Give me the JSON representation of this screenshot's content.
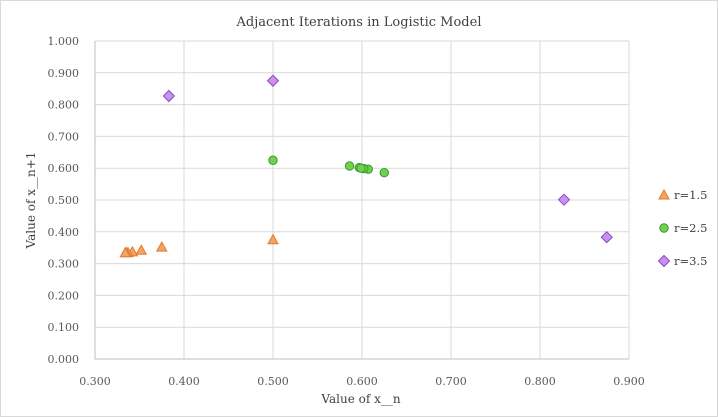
{
  "chart_data": {
    "type": "scatter",
    "title": "Adjacent Iterations  in Logistic Model",
    "xlabel": "Value of x__n",
    "ylabel": "Value of x__n+1",
    "xlim": [
      0.3,
      0.9
    ],
    "ylim": [
      0.0,
      1.0
    ],
    "x_ticks": [
      0.3,
      0.4,
      0.5,
      0.6,
      0.7,
      0.8,
      0.9
    ],
    "y_ticks": [
      0.0,
      0.1,
      0.2,
      0.3,
      0.4,
      0.5,
      0.6,
      0.7,
      0.8,
      0.9,
      1.0
    ],
    "x_tick_labels": [
      "0.300",
      "0.400",
      "0.500",
      "0.600",
      "0.700",
      "0.800",
      "0.900"
    ],
    "y_tick_labels": [
      "0.000",
      "0.100",
      "0.200",
      "0.300",
      "0.400",
      "0.500",
      "0.600",
      "0.700",
      "0.800",
      "0.900",
      "1.000"
    ],
    "grid": true,
    "legend_position": "right",
    "series": [
      {
        "name": "r=1.5",
        "marker": "triangle",
        "color": "#f4a460",
        "stroke": "#e07a2e",
        "points": [
          [
            0.5,
            0.375
          ],
          [
            0.375,
            0.352
          ],
          [
            0.352,
            0.342
          ],
          [
            0.342,
            0.337
          ],
          [
            0.337,
            0.335
          ],
          [
            0.335,
            0.334
          ],
          [
            0.334,
            0.334
          ]
        ]
      },
      {
        "name": "r=2.5",
        "marker": "circle",
        "color": "#70d050",
        "stroke": "#3a9a2a",
        "points": [
          [
            0.5,
            0.625
          ],
          [
            0.625,
            0.586
          ],
          [
            0.586,
            0.607
          ],
          [
            0.607,
            0.597
          ],
          [
            0.597,
            0.602
          ],
          [
            0.602,
            0.599
          ],
          [
            0.599,
            0.6
          ]
        ]
      },
      {
        "name": "r=3.5",
        "marker": "diamond",
        "color": "#c890f0",
        "stroke": "#8a4ac0",
        "points": [
          [
            0.5,
            0.875
          ],
          [
            0.875,
            0.383
          ],
          [
            0.383,
            0.827
          ],
          [
            0.827,
            0.501
          ]
        ]
      }
    ]
  }
}
